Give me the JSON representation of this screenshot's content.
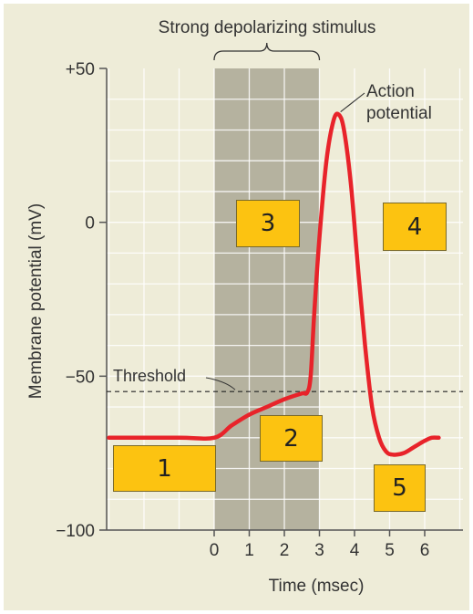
{
  "chart_data": {
    "type": "line",
    "title": "Strong depolarizing stimulus",
    "xlabel": "Time (msec)",
    "ylabel": "Membrane potential (mV)",
    "xlim": [
      -3,
      6.4
    ],
    "ylim": [
      -100,
      50
    ],
    "x_ticks": [
      0,
      1,
      2,
      3,
      4,
      5,
      6
    ],
    "y_ticks": [
      {
        "value": 50,
        "label": "+50"
      },
      {
        "value": 0,
        "label": "0"
      },
      {
        "value": -50,
        "label": "−50"
      },
      {
        "value": -100,
        "label": "−100"
      }
    ],
    "threshold": {
      "value": -55,
      "label": "Threshold"
    },
    "stimulus_interval": [
      0,
      3
    ],
    "peak_label": "Action\npotential",
    "colors": {
      "curve": "#e8232a",
      "stimulus": "#b5b29f",
      "plot_bg": "#eeecd8",
      "grid": "#ffffff",
      "box": "#fcc311"
    },
    "series": [
      {
        "x": [
          -3,
          -1,
          0,
          0.5,
          1,
          1.5,
          2,
          2.5,
          2.65,
          2.75,
          2.85,
          3.0,
          3.2,
          3.4,
          3.55,
          3.7,
          3.9,
          4.1,
          4.3,
          4.5,
          4.7,
          4.9,
          5.1,
          5.4,
          5.7,
          6.0,
          6.2,
          6.4
        ],
        "y": [
          -70,
          -70,
          -70,
          -66,
          -62.5,
          -60,
          -57.5,
          -55.6,
          -55.3,
          -50,
          -30,
          -5,
          20,
          33,
          35,
          30,
          12,
          -15,
          -40,
          -60,
          -70,
          -74.5,
          -75.5,
          -75,
          -73,
          -71,
          -70,
          -70
        ]
      }
    ]
  },
  "boxes": [
    {
      "label": "1"
    },
    {
      "label": "2"
    },
    {
      "label": "3"
    },
    {
      "label": "4"
    },
    {
      "label": "5"
    }
  ]
}
